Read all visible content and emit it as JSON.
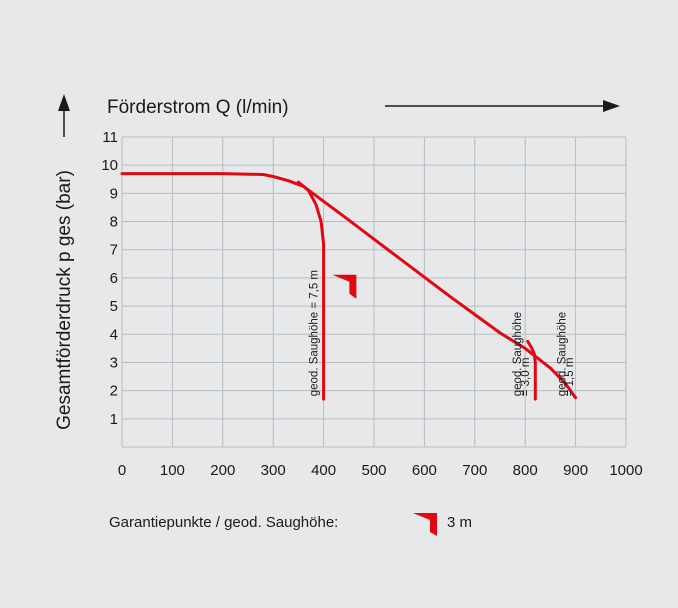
{
  "chart_data": {
    "type": "line",
    "xlabel": "Förderstrom Q (l/min)",
    "ylabel": "Gesamtförderdruck p ges (bar)",
    "xlim": [
      0,
      1000
    ],
    "ylim": [
      0,
      11
    ],
    "x_ticks": [
      0,
      100,
      200,
      300,
      400,
      500,
      600,
      700,
      800,
      900,
      1000
    ],
    "y_ticks": [
      1,
      2,
      3,
      4,
      5,
      6,
      7,
      8,
      9,
      10,
      11
    ],
    "grid": true,
    "line_color": "#e30613",
    "series": [
      {
        "x": [
          0,
          100,
          200,
          280,
          300,
          330,
          360,
          450,
          550,
          650,
          750,
          800,
          850,
          880,
          900
        ],
        "y": [
          9.7,
          9.7,
          9.7,
          9.67,
          9.6,
          9.45,
          9.25,
          8.05,
          6.7,
          5.35,
          4.05,
          3.5,
          2.8,
          2.25,
          1.75
        ]
      },
      {
        "x": [
          350,
          370,
          385,
          395,
          400,
          400
        ],
        "y": [
          9.4,
          9.1,
          8.6,
          8.0,
          7.2,
          1.7
        ]
      },
      {
        "x": [
          805,
          812,
          818,
          820,
          820
        ],
        "y": [
          3.75,
          3.55,
          3.3,
          3.0,
          1.7
        ]
      }
    ],
    "annotations": [
      {
        "text": "geod. Saughöhe = 7,5 m",
        "x": 388,
        "y": 1.8
      },
      {
        "text": "geod. Saughöhe",
        "x": 792,
        "y": 1.8
      },
      {
        "text": "= 3,0 m",
        "x": 808,
        "y": 1.8
      },
      {
        "text": "geod. Saughöhe",
        "x": 880,
        "y": 1.8
      },
      {
        "text": "= 1,5 m",
        "x": 895,
        "y": 1.8
      }
    ],
    "guarantee_marker": {
      "x": 465,
      "y": 5.9
    },
    "legend": {
      "label": "Garantiepunkte / geod. Saughöhe:",
      "value": "3 m"
    }
  }
}
